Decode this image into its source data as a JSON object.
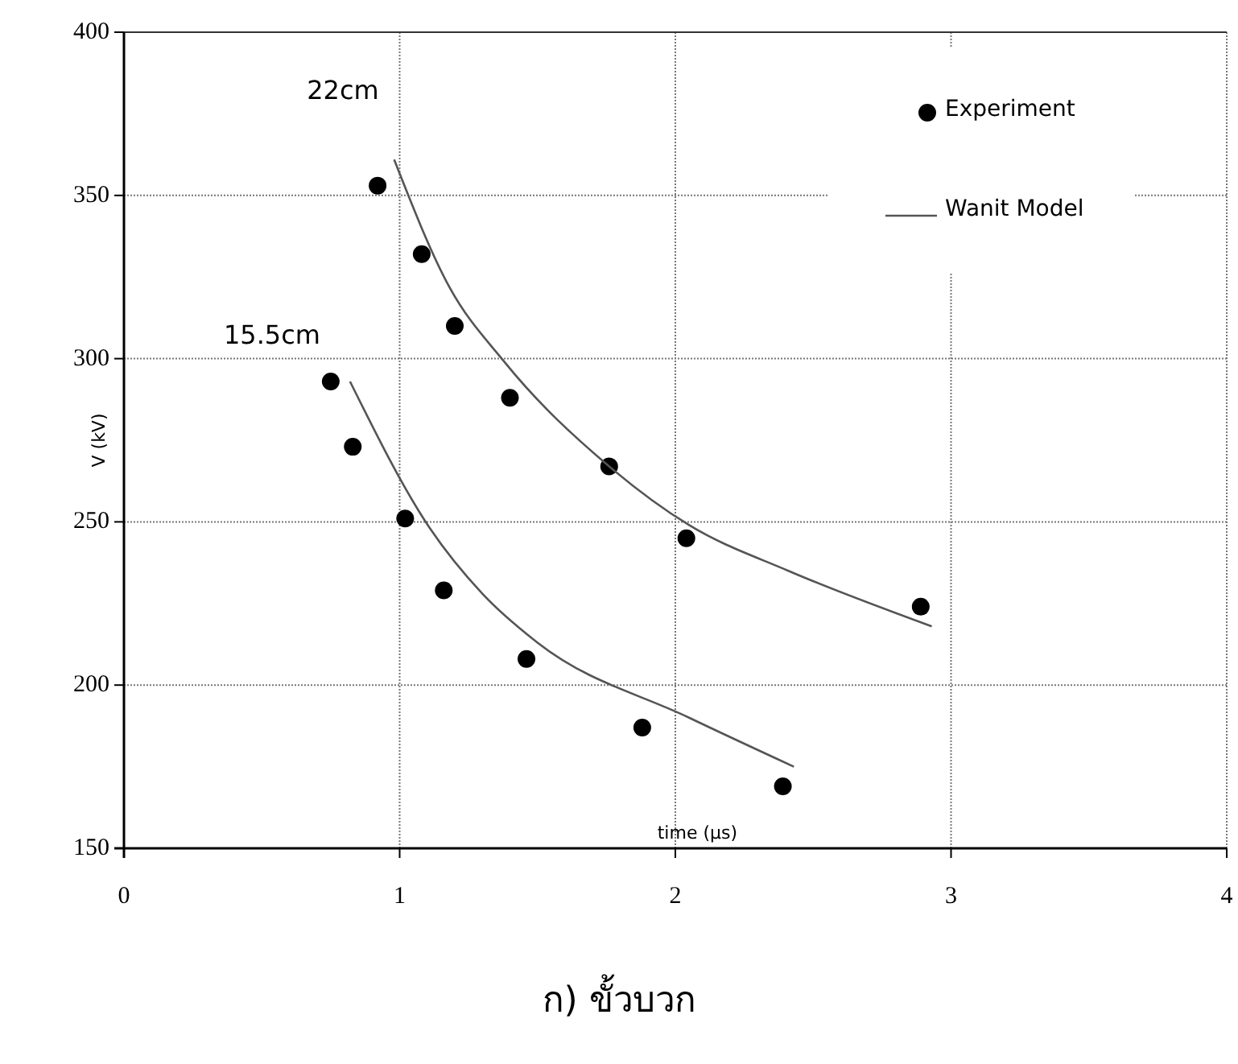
{
  "chart_data": {
    "type": "scatter",
    "xlabel": "time (μs)",
    "ylabel": "V (kV)",
    "xlim": [
      0,
      4
    ],
    "xticks": [
      0,
      1,
      2,
      3,
      4
    ],
    "ylim": [
      150,
      400
    ],
    "yticks": [
      150,
      200,
      250,
      300,
      350,
      400
    ],
    "grid": true,
    "legend": "top right",
    "series": [
      {
        "name": "Experiment",
        "color": "#000000",
        "marker": "circle",
        "x": [
          0.92,
          1.08,
          1.2,
          1.4,
          1.76,
          2.04,
          2.89
        ],
        "values": [
          353,
          332,
          310,
          288,
          267,
          245,
          224
        ]
      },
      {
        "color": "#000000",
        "marker": "circle",
        "x": [
          0.75,
          0.83,
          1.02,
          1.16,
          1.46,
          1.88,
          2.39
        ],
        "values": [
          293,
          273,
          251,
          229,
          208,
          187,
          169
        ]
      },
      {
        "name": "Wanit Model",
        "type": "line",
        "color": "#555555",
        "marker": "none",
        "line_style": "solid",
        "x": [
          0.98,
          1.18,
          1.38,
          1.76,
          2.05,
          2.41,
          2.93
        ],
        "values": [
          361,
          322,
          299,
          267,
          249,
          235,
          218
        ]
      },
      {
        "type": "line",
        "color": "#555555",
        "marker": "none",
        "line_style": "solid",
        "x": [
          0.82,
          1.11,
          1.3,
          1.5,
          2.05,
          2.43
        ],
        "values": [
          293,
          248,
          228,
          213,
          190,
          175
        ]
      }
    ],
    "annotations": [
      "22cm",
      "15.5cm",
      "ก) ขั้วบวก"
    ]
  }
}
